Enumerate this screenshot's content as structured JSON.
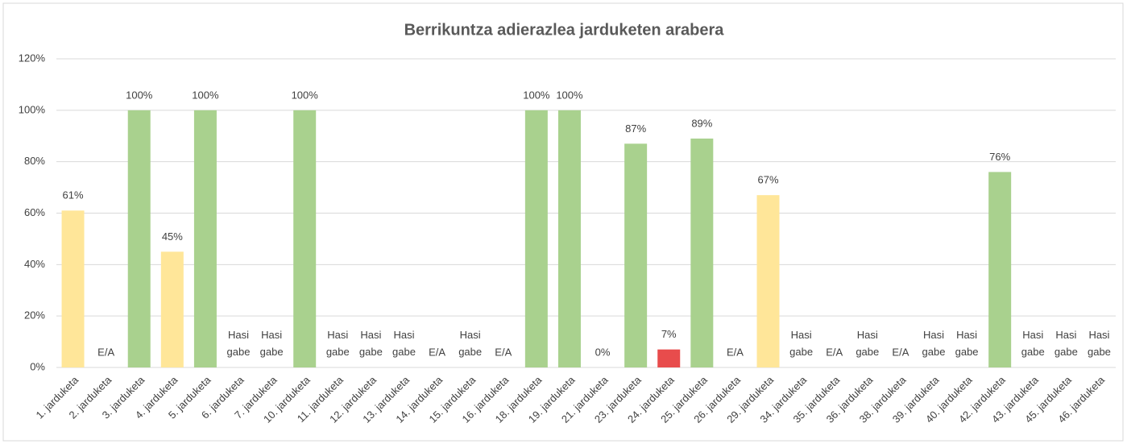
{
  "chart_data": {
    "type": "bar",
    "title": "Berrikuntza adierazlea jarduketen arabera",
    "categories": [
      "1. jarduketa",
      "2. jarduketa",
      "3. jarduketa",
      "4. jarduketa",
      "5. jarduketa",
      "6. jarduketa",
      "7. jarduketa",
      "10. jarduketa",
      "11. jarduketa",
      "12. jarduketa",
      "13. jarduketa",
      "14. jarduketa",
      "15. jarduketa",
      "16. jarduketa",
      "18. jarduketa",
      "19. jarduketa",
      "21. jarduketa",
      "23. jarduketa",
      "24. jarduketa",
      "25. jarduketa",
      "26. jarduketa",
      "29. jarduketa",
      "34. jarduketa",
      "35. jarduketa",
      "36. jarduketa",
      "38. jarduketa",
      "39. jarduketa",
      "40. jarduketa",
      "42. jarduketa",
      "43. jarduketa",
      "45. jarduketa",
      "46. jarduketa"
    ],
    "values": [
      61,
      null,
      100,
      45,
      100,
      null,
      null,
      100,
      null,
      null,
      null,
      null,
      null,
      null,
      100,
      100,
      0,
      87,
      7,
      89,
      null,
      67,
      null,
      null,
      null,
      null,
      null,
      null,
      76,
      null,
      null,
      null
    ],
    "value_labels": [
      "61%",
      "E/A",
      "100%",
      "45%",
      "100%",
      "Hasi gabe",
      "Hasi gabe",
      "100%",
      "Hasi gabe",
      "Hasi gabe",
      "Hasi gabe",
      "E/A",
      "Hasi gabe",
      "E/A",
      "100%",
      "100%",
      "0%",
      "87%",
      "7%",
      "89%",
      "E/A",
      "67%",
      "Hasi gabe",
      "E/A",
      "Hasi gabe",
      "E/A",
      "Hasi gabe",
      "Hasi gabe",
      "76%",
      "Hasi gabe",
      "Hasi gabe",
      "Hasi gabe"
    ],
    "colors": [
      "#ffe699",
      null,
      "#a9d18e",
      "#ffe699",
      "#a9d18e",
      null,
      null,
      "#a9d18e",
      null,
      null,
      null,
      null,
      null,
      null,
      "#a9d18e",
      "#a9d18e",
      "#a9d18e",
      "#a9d18e",
      "#e84c4c",
      "#a9d18e",
      null,
      "#ffe699",
      null,
      null,
      null,
      null,
      null,
      null,
      "#a9d18e",
      null,
      null,
      null
    ],
    "ylim": [
      0,
      120
    ],
    "yticks": [
      {
        "value": 0,
        "label": "0%"
      },
      {
        "value": 20,
        "label": "20%"
      },
      {
        "value": 40,
        "label": "40%"
      },
      {
        "value": 60,
        "label": "60%"
      },
      {
        "value": 80,
        "label": "80%"
      },
      {
        "value": 100,
        "label": "100%"
      },
      {
        "value": 120,
        "label": "120%"
      }
    ],
    "grid": true
  }
}
